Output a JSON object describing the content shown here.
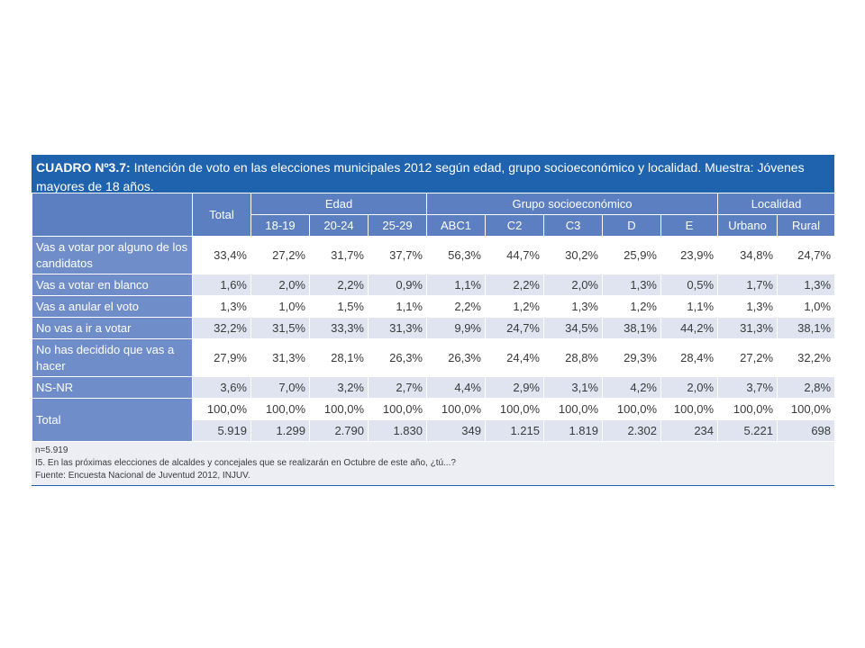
{
  "title": {
    "label": "CUADRO Nº3.7:",
    "text": " Intención de voto en las elecciones municipales 2012 según edad, grupo socioeconómico y localidad. Muestra: Jóvenes mayores de 18 años."
  },
  "header": {
    "total": "Total",
    "groups": [
      "Edad",
      "Grupo socioeconómico",
      "Localidad"
    ],
    "columns": [
      "18-19",
      "20-24",
      "25-29",
      "ABC1",
      "C2",
      "C3",
      "D",
      "E",
      "Urbano",
      "Rural"
    ]
  },
  "rows": [
    {
      "label": "Vas a votar por alguno de los candidatos",
      "values": [
        "33,4%",
        "27,2%",
        "31,7%",
        "37,7%",
        "56,3%",
        "44,7%",
        "30,2%",
        "25,9%",
        "23,9%",
        "34,8%",
        "24,7%"
      ]
    },
    {
      "label": "Vas a votar en blanco",
      "values": [
        "1,6%",
        "2,0%",
        "2,2%",
        "0,9%",
        "1,1%",
        "2,2%",
        "2,0%",
        "1,3%",
        "0,5%",
        "1,7%",
        "1,3%"
      ]
    },
    {
      "label": "Vas a anular el voto",
      "values": [
        "1,3%",
        "1,0%",
        "1,5%",
        "1,1%",
        "2,2%",
        "1,2%",
        "1,3%",
        "1,2%",
        "1,1%",
        "1,3%",
        "1,0%"
      ]
    },
    {
      "label": "No vas a ir a votar",
      "values": [
        "32,2%",
        "31,5%",
        "33,3%",
        "31,3%",
        "9,9%",
        "24,7%",
        "34,5%",
        "38,1%",
        "44,2%",
        "31,3%",
        "38,1%"
      ]
    },
    {
      "label": "No has decidido que vas a hacer",
      "values": [
        "27,9%",
        "31,3%",
        "28,1%",
        "26,3%",
        "26,3%",
        "24,4%",
        "28,8%",
        "29,3%",
        "28,4%",
        "27,2%",
        "32,2%"
      ]
    },
    {
      "label": "NS-NR",
      "values": [
        "3,6%",
        "7,0%",
        "3,2%",
        "2,7%",
        "4,4%",
        "2,9%",
        "3,1%",
        "4,2%",
        "2,0%",
        "3,7%",
        "2,8%"
      ]
    }
  ],
  "total_row": {
    "label": "Total",
    "percent": [
      "100,0%",
      "100,0%",
      "100,0%",
      "100,0%",
      "100,0%",
      "100,0%",
      "100,0%",
      "100,0%",
      "100,0%",
      "100,0%",
      "100,0%"
    ],
    "counts": [
      "5.919",
      "1.299",
      "2.790",
      "1.830",
      "349",
      "1.215",
      "1.819",
      "2.302",
      "234",
      "5.221",
      "698"
    ]
  },
  "footnotes": [
    "n=5.919",
    "I5. En las próximas elecciones de alcaldes y concejales que se realizarán en Octubre de este año, ¿tú...?",
    "Fuente: Encuesta Nacional de Juventud 2012, INJUV."
  ],
  "colors": {
    "title_bg": "#1f63ae",
    "header_bg": "#5b7fc1",
    "label_bg": "#6f8ec9",
    "stripe": "#dfe4f0"
  }
}
